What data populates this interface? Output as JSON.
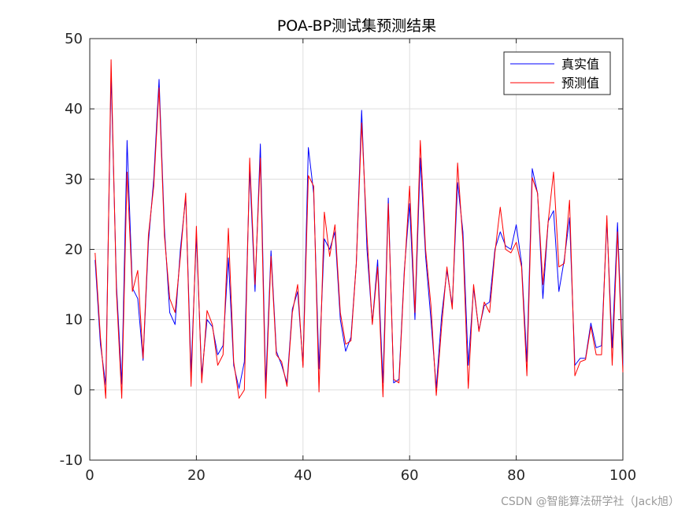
{
  "chart_data": {
    "type": "line",
    "title": "POA-BP测试集预测结果",
    "xlabel": "",
    "ylabel": "",
    "xlim": [
      0,
      100
    ],
    "ylim": [
      -10,
      50
    ],
    "xticks": [
      0,
      20,
      40,
      60,
      80,
      100
    ],
    "yticks": [
      -10,
      0,
      10,
      20,
      30,
      40,
      50
    ],
    "grid": true,
    "legend_position": "top-right",
    "series": [
      {
        "name": "真实值",
        "color": "#0000ff",
        "values": [
          18.5,
          6.5,
          0.7,
          45,
          15,
          0.8,
          35.5,
          14.5,
          13,
          4.2,
          21,
          30,
          44.2,
          23,
          11,
          9.3,
          20,
          27.5,
          2.5,
          22,
          2,
          10,
          9,
          5,
          6.3,
          18.8,
          3.5,
          0.2,
          4,
          31.5,
          14,
          35,
          0.5,
          19.8,
          5.5,
          3.5,
          1,
          11.5,
          14,
          3.5,
          34.5,
          28,
          3,
          21.5,
          20,
          22.5,
          10,
          5.5,
          7.5,
          18,
          39.8,
          20,
          9.5,
          18.5,
          1,
          27.3,
          1,
          1.5,
          17,
          26.5,
          10,
          33,
          19,
          10,
          0.3,
          10.5,
          17,
          12,
          29.5,
          22.5,
          3.5,
          14.5,
          8.5,
          12,
          12.5,
          20,
          22.5,
          20.5,
          20,
          23.5,
          18,
          4,
          31.5,
          28,
          13,
          24,
          25.5,
          14,
          18.5,
          24.5,
          3.5,
          4.5,
          4.5,
          9.5,
          6,
          6.3,
          24,
          6,
          23.8,
          3.5
        ],
        "points_note": ""
      },
      {
        "name": "预测值",
        "color": "#ff0000",
        "values": [
          19.5,
          7.5,
          -1.2,
          47,
          14,
          -1.2,
          31,
          14,
          17,
          4.5,
          22,
          29,
          43,
          22,
          13,
          11,
          19,
          28,
          0.5,
          23.3,
          1,
          11.3,
          9.3,
          3.5,
          5,
          23,
          4,
          -1.2,
          0,
          33,
          15,
          33,
          -1.2,
          19,
          5,
          4,
          0.5,
          11,
          15,
          3.2,
          30.5,
          29,
          -0.3,
          25.3,
          19,
          23.5,
          11,
          6.5,
          7,
          18,
          38,
          22,
          9.3,
          17.5,
          -1,
          26.5,
          1.5,
          1,
          16.5,
          29,
          11,
          35.5,
          20,
          12,
          -0.8,
          9,
          17.5,
          11.5,
          32.3,
          21,
          0.2,
          15,
          8.3,
          12.5,
          11,
          19.5,
          26,
          20,
          19.5,
          21,
          17.5,
          2,
          30.2,
          28,
          15,
          24,
          31,
          17.5,
          18,
          27,
          2,
          4,
          4.3,
          9,
          5,
          5,
          24.8,
          3.5,
          22.5,
          2.5
        ],
        "points_note": ""
      }
    ]
  },
  "watermark": "CSDN @智能算法研学社（Jack旭）"
}
